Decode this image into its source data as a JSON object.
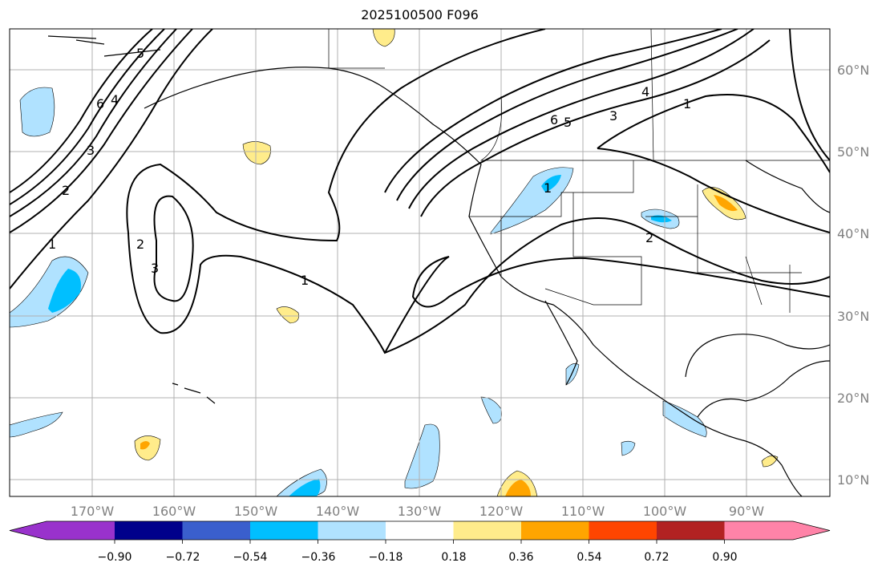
{
  "title": "2025100500 F096",
  "map": {
    "lon_labels": [
      "170°W",
      "160°W",
      "150°W",
      "140°W",
      "130°W",
      "120°W",
      "110°W",
      "100°W",
      "90°W"
    ],
    "lat_labels": [
      "60°N",
      "50°N",
      "40°N",
      "30°N",
      "20°N",
      "10°N"
    ],
    "contour_labels": {
      "nw_6": "6",
      "nw_5": "5",
      "nw_4": "4",
      "nw_3": "3",
      "nw_2": "2",
      "nw_1": "1",
      "low_3": "3",
      "low_2": "2",
      "mid_1": "1",
      "ne_6": "6",
      "ne_5": "5",
      "ne_4": "4",
      "ne_3": "3",
      "ne_1": "1",
      "plains_2": "2",
      "plains_1": "1"
    }
  },
  "colorbar": {
    "tick_labels": [
      "−0.90",
      "−0.72",
      "−0.54",
      "−0.36",
      "−0.18",
      "0.18",
      "0.36",
      "0.54",
      "0.72",
      "0.90"
    ],
    "colors": [
      "#9932cc",
      "#00008b",
      "#3a5fcd",
      "#00bfff",
      "#b0e2ff",
      "#ffffff",
      "#ffec8b",
      "#ffa500",
      "#ff4500",
      "#b22222",
      "#ff83a8"
    ]
  }
}
